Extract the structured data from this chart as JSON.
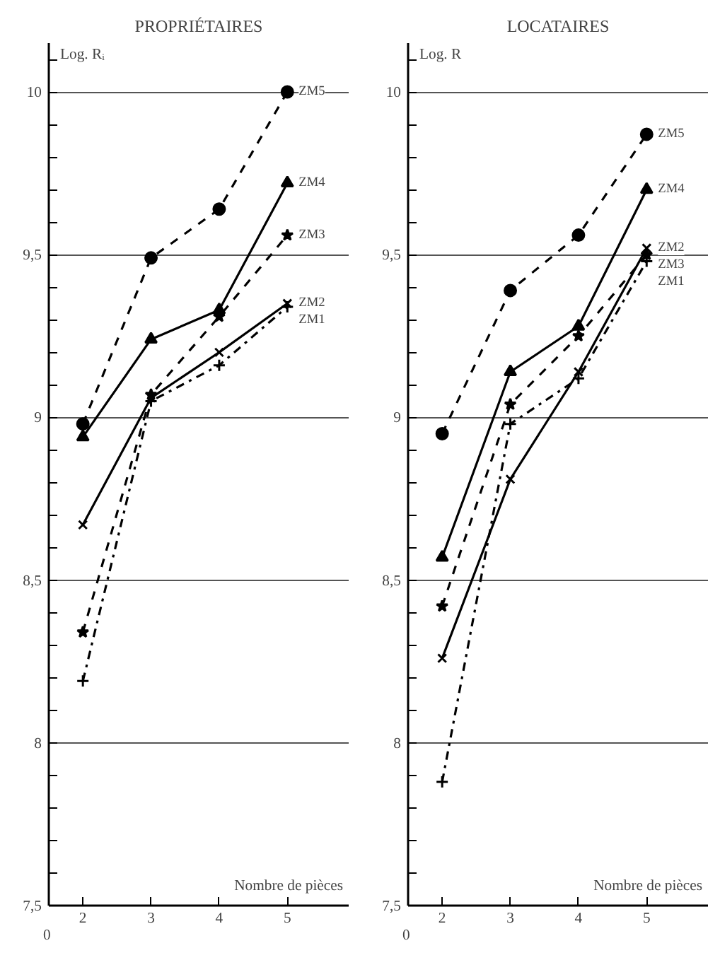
{
  "chart_data": [
    {
      "type": "line",
      "title": "PROPRIÉTAIRES",
      "ylabel": "Log. Rᵢ",
      "xlabel": "Nombre de pièces",
      "x": [
        2,
        3,
        4,
        5
      ],
      "xlim": [
        1.5,
        5.9
      ],
      "xticks": [
        2,
        3,
        4,
        5
      ],
      "ylim": [
        7.5,
        10.15
      ],
      "yticks": [
        {
          "value": 7.5,
          "label": "7,5"
        },
        8,
        {
          "value": 8.5,
          "label": "8,5"
        },
        9,
        {
          "value": 9.5,
          "label": "9,5"
        },
        10
      ],
      "grid": "y",
      "annotations": [
        "0"
      ],
      "series": [
        {
          "name": "ZM5",
          "color": "#000000",
          "values": [
            8.98,
            9.49,
            9.64,
            10.0
          ],
          "marker": "circle",
          "line_style": "dashed"
        },
        {
          "name": "ZM4",
          "color": "#000000",
          "values": [
            8.94,
            9.24,
            9.33,
            9.72
          ],
          "marker": "triangle",
          "line_style": "solid"
        },
        {
          "name": "ZM3",
          "color": "#000000",
          "values": [
            8.34,
            9.07,
            9.31,
            9.56
          ],
          "marker": "star",
          "line_style": "dashed"
        },
        {
          "name": "ZM2",
          "color": "#000000",
          "values": [
            8.67,
            9.06,
            9.2,
            9.35
          ],
          "marker": "x",
          "line_style": "solid"
        },
        {
          "name": "ZM1",
          "color": "#000000",
          "values": [
            8.19,
            9.05,
            9.16,
            9.34
          ],
          "marker": "cross",
          "line_style": "dashdot"
        }
      ]
    },
    {
      "type": "line",
      "title": "LOCATAIRES",
      "ylabel": "Log. R",
      "xlabel": "Nombre de pièces",
      "x": [
        2,
        3,
        4,
        5
      ],
      "xlim": [
        1.5,
        5.9
      ],
      "xticks": [
        2,
        3,
        4,
        5
      ],
      "ylim": [
        7.5,
        10.15
      ],
      "yticks": [
        {
          "value": 7.5,
          "label": "7,5"
        },
        8,
        {
          "value": 8.5,
          "label": "8,5"
        },
        9,
        {
          "value": 9.5,
          "label": "9,5"
        },
        10
      ],
      "grid": "y",
      "annotations": [
        "0"
      ],
      "series": [
        {
          "name": "ZM5",
          "color": "#000000",
          "values": [
            8.95,
            9.39,
            9.56,
            9.87
          ],
          "marker": "circle",
          "line_style": "dashed"
        },
        {
          "name": "ZM4",
          "color": "#000000",
          "values": [
            8.57,
            9.14,
            9.28,
            9.7
          ],
          "marker": "triangle",
          "line_style": "solid"
        },
        {
          "name": "ZM2",
          "color": "#000000",
          "values": [
            8.26,
            8.81,
            9.14,
            9.52
          ],
          "marker": "x",
          "line_style": "solid"
        },
        {
          "name": "ZM3",
          "color": "#000000",
          "values": [
            8.42,
            9.04,
            9.25,
            9.5
          ],
          "marker": "star",
          "line_style": "dashed"
        },
        {
          "name": "ZM1",
          "color": "#000000",
          "values": [
            7.88,
            8.98,
            9.12,
            9.48
          ],
          "marker": "cross",
          "line_style": "dashdot"
        }
      ]
    }
  ]
}
